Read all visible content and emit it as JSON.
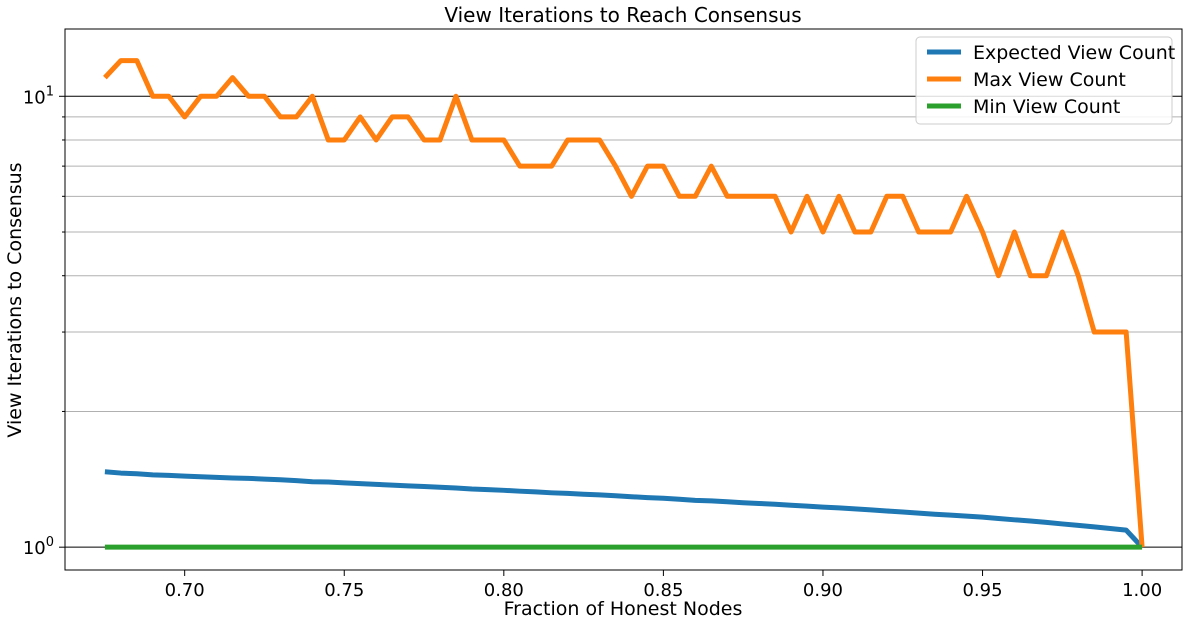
{
  "chart_data": {
    "type": "line",
    "title": "View Iterations to Reach Consensus",
    "xlabel": "Fraction of Honest Nodes",
    "ylabel": "View Iterations to Consensus",
    "y_scale": "log",
    "xlim": [
      0.6625,
      1.0125
    ],
    "ylim": [
      0.89,
      14.1
    ],
    "x_ticks": [
      0.7,
      0.75,
      0.8,
      0.85,
      0.9,
      0.95,
      1.0
    ],
    "x_tick_labels": [
      "0.70",
      "0.75",
      "0.80",
      "0.85",
      "0.90",
      "0.95",
      "1.00"
    ],
    "y_major_ticks": [
      1,
      10
    ],
    "y_major_tick_labels": [
      {
        "base": "10",
        "exp": "0"
      },
      {
        "base": "10",
        "exp": "1"
      }
    ],
    "y_minor_ticks": [
      2,
      3,
      4,
      5,
      6,
      7,
      8,
      9
    ],
    "grid": "y-major-and-minor",
    "legend_position": "top-right",
    "x": [
      0.675,
      0.68,
      0.685,
      0.69,
      0.695,
      0.7,
      0.705,
      0.71,
      0.715,
      0.72,
      0.725,
      0.73,
      0.735,
      0.74,
      0.745,
      0.75,
      0.755,
      0.76,
      0.765,
      0.77,
      0.775,
      0.78,
      0.785,
      0.79,
      0.795,
      0.8,
      0.805,
      0.81,
      0.815,
      0.82,
      0.825,
      0.83,
      0.835,
      0.84,
      0.845,
      0.85,
      0.855,
      0.86,
      0.865,
      0.87,
      0.875,
      0.88,
      0.885,
      0.89,
      0.895,
      0.9,
      0.905,
      0.91,
      0.915,
      0.92,
      0.925,
      0.93,
      0.935,
      0.94,
      0.945,
      0.95,
      0.955,
      0.96,
      0.965,
      0.97,
      0.975,
      0.98,
      0.985,
      0.99,
      0.995,
      1.0
    ],
    "series": [
      {
        "name": "Expected View Count",
        "color": "#1f77b4",
        "values": [
          1.47,
          1.46,
          1.455,
          1.447,
          1.443,
          1.437,
          1.433,
          1.428,
          1.424,
          1.421,
          1.416,
          1.411,
          1.405,
          1.397,
          1.395,
          1.389,
          1.383,
          1.378,
          1.373,
          1.368,
          1.363,
          1.358,
          1.353,
          1.346,
          1.342,
          1.337,
          1.331,
          1.326,
          1.32,
          1.316,
          1.31,
          1.306,
          1.3,
          1.294,
          1.288,
          1.284,
          1.277,
          1.27,
          1.267,
          1.261,
          1.255,
          1.25,
          1.245,
          1.239,
          1.233,
          1.227,
          1.222,
          1.216,
          1.21,
          1.203,
          1.197,
          1.19,
          1.183,
          1.178,
          1.172,
          1.166,
          1.158,
          1.15,
          1.143,
          1.135,
          1.126,
          1.118,
          1.109,
          1.1,
          1.091,
          1.0
        ]
      },
      {
        "name": "Max View Count",
        "color": "#ff7f0e",
        "values": [
          11,
          12,
          12,
          10,
          10,
          9,
          10,
          10,
          11,
          10,
          10,
          9,
          9,
          10,
          8,
          8,
          9,
          8,
          9,
          9,
          8,
          8,
          10,
          8,
          8,
          8,
          7,
          7,
          7,
          8,
          8,
          8,
          7,
          6,
          7,
          7,
          6,
          6,
          7,
          6,
          6,
          6,
          6,
          5,
          6,
          5,
          6,
          5,
          5,
          6,
          6,
          5,
          5,
          5,
          6,
          5,
          4,
          5,
          4,
          4,
          5,
          4,
          3,
          3,
          3,
          1
        ]
      },
      {
        "name": "Min View Count",
        "color": "#2ca02c",
        "values": [
          1,
          1,
          1,
          1,
          1,
          1,
          1,
          1,
          1,
          1,
          1,
          1,
          1,
          1,
          1,
          1,
          1,
          1,
          1,
          1,
          1,
          1,
          1,
          1,
          1,
          1,
          1,
          1,
          1,
          1,
          1,
          1,
          1,
          1,
          1,
          1,
          1,
          1,
          1,
          1,
          1,
          1,
          1,
          1,
          1,
          1,
          1,
          1,
          1,
          1,
          1,
          1,
          1,
          1,
          1,
          1,
          1,
          1,
          1,
          1,
          1,
          1,
          1,
          1,
          1,
          1
        ]
      }
    ]
  }
}
